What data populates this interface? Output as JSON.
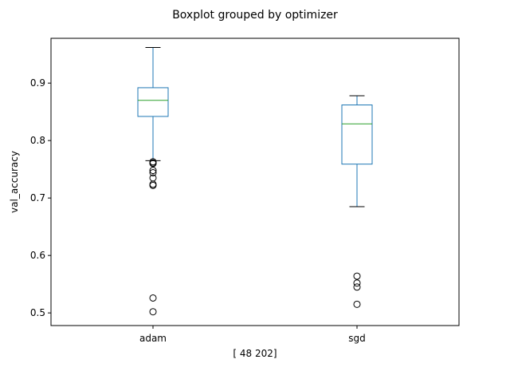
{
  "chart_data": {
    "type": "box",
    "title": "Boxplot grouped by optimizer",
    "xlabel": "[ 48 202]",
    "ylabel": "val_accuracy",
    "categories": [
      "adam",
      "sgd"
    ],
    "ylim": [
      0.478,
      0.978
    ],
    "yticks": [
      0.5,
      0.6,
      0.7,
      0.8,
      0.9
    ],
    "ytick_labels": [
      "0.5",
      "0.6",
      "0.7",
      "0.8",
      "0.9"
    ],
    "grid": false,
    "colors": {
      "box": "#1f77b4",
      "median": "#2ca02c",
      "whisker_cap": "#000000",
      "flier": "#000000"
    },
    "boxes": [
      {
        "category": "adam",
        "whislo": 0.765,
        "q1": 0.842,
        "med": 0.87,
        "q3": 0.892,
        "whishi": 0.962,
        "fliers": [
          0.763,
          0.761,
          0.76,
          0.748,
          0.744,
          0.735,
          0.724,
          0.722,
          0.526,
          0.502
        ]
      },
      {
        "category": "sgd",
        "whislo": 0.685,
        "q1": 0.759,
        "med": 0.829,
        "q3": 0.862,
        "whishi": 0.878,
        "fliers": [
          0.564,
          0.552,
          0.545,
          0.515
        ]
      }
    ]
  }
}
